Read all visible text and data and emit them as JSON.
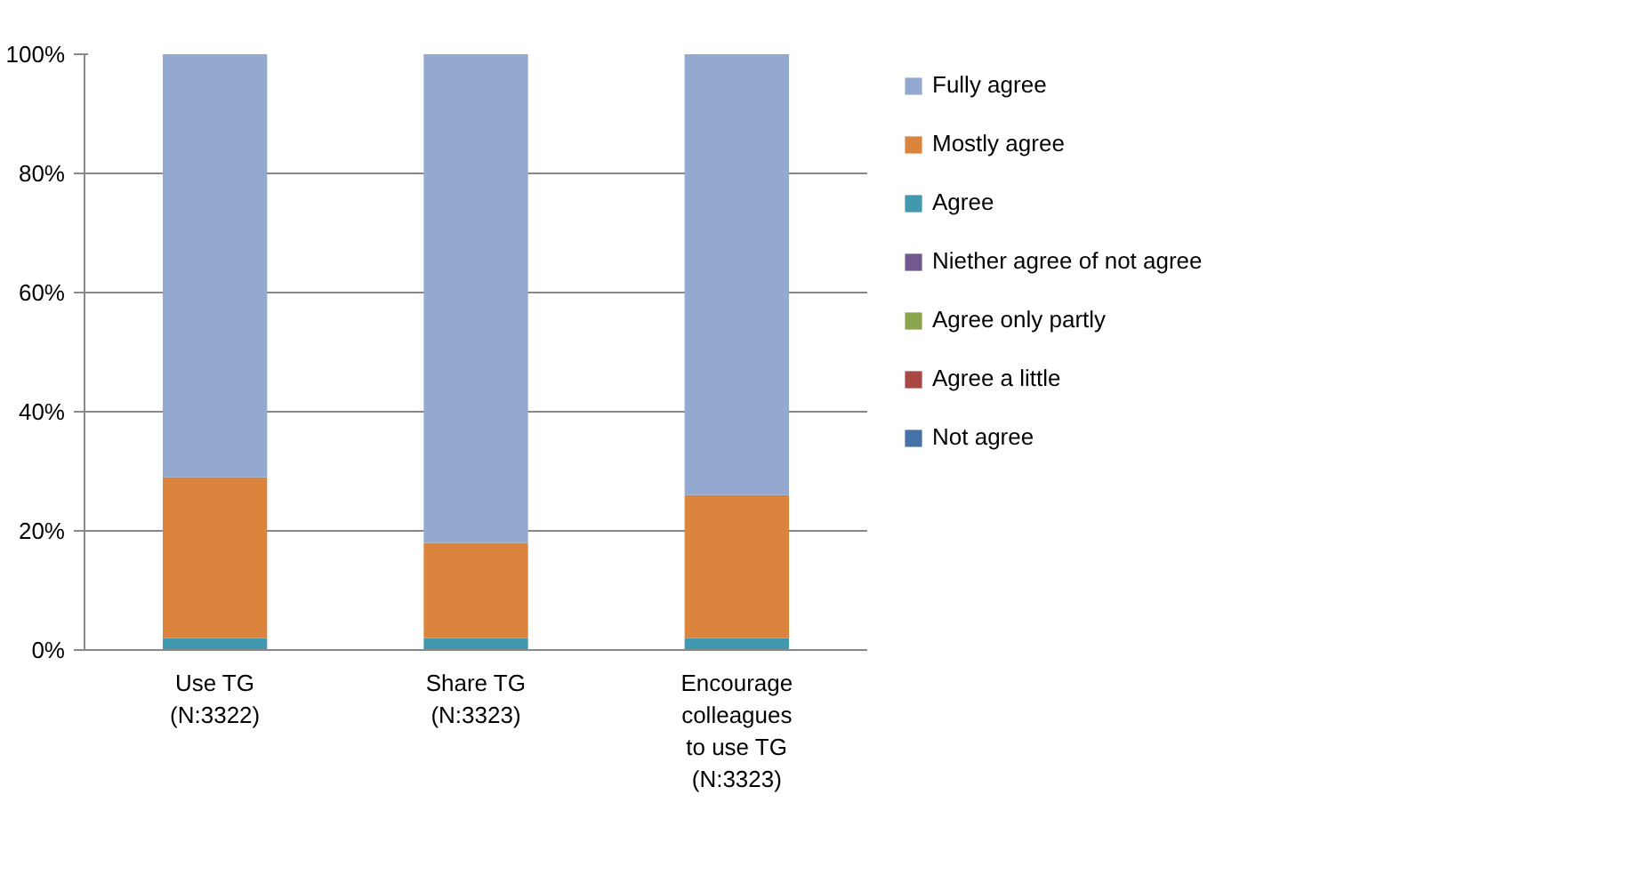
{
  "chart_data": {
    "type": "bar",
    "stacked": true,
    "categories": [
      "Use TG (N:3322)",
      "Share TG (N:3323)",
      "Encourage colleagues to use TG (N:3323)"
    ],
    "series": [
      {
        "name": "Not agree",
        "color": "#4672a8",
        "values": [
          0,
          0,
          0
        ]
      },
      {
        "name": "Agree a little",
        "color": "#aa4643",
        "values": [
          0,
          0,
          0
        ]
      },
      {
        "name": "Agree only partly",
        "color": "#89a54e",
        "values": [
          0,
          0,
          0
        ]
      },
      {
        "name": "Niether agree of not agree",
        "color": "#71588f",
        "values": [
          0,
          0,
          0
        ]
      },
      {
        "name": "Agree",
        "color": "#4198af",
        "values": [
          2,
          2,
          2
        ]
      },
      {
        "name": "Mostly agree",
        "color": "#db843d",
        "values": [
          27,
          16,
          24
        ]
      },
      {
        "name": "Fully agree",
        "color": "#93a9cf",
        "values": [
          71,
          82,
          74
        ]
      }
    ],
    "ylim": [
      0,
      100
    ],
    "yticks": [
      {
        "value": 0,
        "label": "0%"
      },
      {
        "value": 20,
        "label": "20%"
      },
      {
        "value": 40,
        "label": "40%"
      },
      {
        "value": 60,
        "label": "60%"
      },
      {
        "value": 80,
        "label": "80%"
      },
      {
        "value": 100,
        "label": "100%"
      }
    ],
    "grid": "y",
    "legend": "right"
  }
}
